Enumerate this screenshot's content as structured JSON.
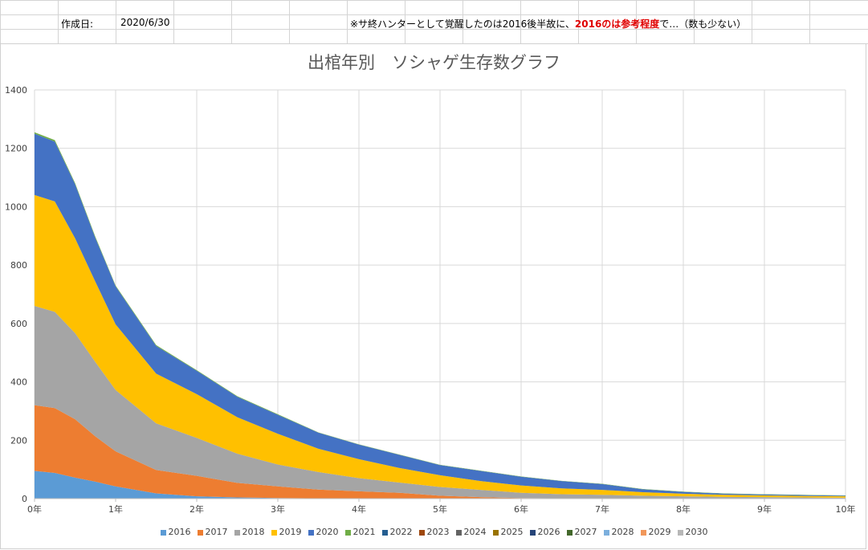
{
  "header": {
    "created_label": "作成日:",
    "created_date": "2020/6/30",
    "note_pre": "※サ終ハンターとして覚醒したのは2016後半故に、",
    "note_red": "2016のは参考程度",
    "note_post": "で…（数も少ない）"
  },
  "chart_data": {
    "type": "area",
    "stacked": true,
    "title": "出棺年別　ソシャゲ生存数グラフ",
    "xlabel": "",
    "ylabel": "",
    "x_ticks": [
      "0年",
      "1年",
      "2年",
      "3年",
      "4年",
      "5年",
      "6年",
      "7年",
      "8年",
      "9年",
      "10年"
    ],
    "x_range": [
      0,
      10
    ],
    "ylim": [
      0,
      1400
    ],
    "y_ticks": [
      0,
      200,
      400,
      600,
      800,
      1000,
      1200,
      1400
    ],
    "grid": true,
    "legend_position": "bottom",
    "x": [
      0,
      0.25,
      0.5,
      0.75,
      1,
      1.5,
      2,
      2.5,
      3,
      3.5,
      4,
      4.5,
      5,
      5.5,
      6,
      6.5,
      7,
      7.5,
      8,
      8.5,
      9,
      9.5,
      10
    ],
    "series": [
      {
        "name": "2016",
        "color": "#5b9bd5",
        "values": [
          95,
          88,
          72,
          58,
          42,
          18,
          8,
          4,
          2,
          1,
          0,
          0,
          0,
          0,
          0,
          0,
          0,
          0,
          0,
          0,
          0,
          0,
          0
        ]
      },
      {
        "name": "2017",
        "color": "#ed7d31",
        "values": [
          225,
          222,
          200,
          155,
          120,
          80,
          70,
          50,
          40,
          30,
          25,
          20,
          10,
          5,
          2,
          1,
          1,
          0,
          0,
          0,
          0,
          0,
          0
        ]
      },
      {
        "name": "2018",
        "color": "#a5a5a5",
        "values": [
          340,
          330,
          295,
          255,
          210,
          160,
          130,
          100,
          75,
          60,
          45,
          35,
          30,
          25,
          18,
          14,
          12,
          10,
          8,
          6,
          5,
          4,
          3
        ]
      },
      {
        "name": "2019",
        "color": "#ffc000",
        "values": [
          380,
          378,
          325,
          275,
          225,
          170,
          150,
          125,
          105,
          80,
          65,
          50,
          40,
          30,
          25,
          20,
          17,
          12,
          9,
          7,
          6,
          5,
          5
        ]
      },
      {
        "name": "2020",
        "color": "#4472c4",
        "values": [
          210,
          205,
          185,
          150,
          130,
          95,
          80,
          70,
          65,
          55,
          50,
          45,
          35,
          35,
          30,
          25,
          20,
          10,
          6,
          4,
          3,
          3,
          2
        ]
      },
      {
        "name": "2021",
        "color": "#70ad47",
        "values": [
          5,
          5,
          4,
          4,
          3,
          3,
          2,
          2,
          2,
          1,
          1,
          1,
          1,
          1,
          1,
          1,
          1,
          1,
          1,
          1,
          1,
          1,
          1
        ]
      },
      {
        "name": "2022",
        "color": "#255e91",
        "values": [
          0,
          0,
          0,
          0,
          0,
          0,
          0,
          0,
          0,
          0,
          0,
          0,
          0,
          0,
          0,
          0,
          0,
          0,
          0,
          0,
          0,
          0,
          0
        ]
      },
      {
        "name": "2023",
        "color": "#9e480e",
        "values": [
          0,
          0,
          0,
          0,
          0,
          0,
          0,
          0,
          0,
          0,
          0,
          0,
          0,
          0,
          0,
          0,
          0,
          0,
          0,
          0,
          0,
          0,
          0
        ]
      },
      {
        "name": "2024",
        "color": "#636363",
        "values": [
          0,
          0,
          0,
          0,
          0,
          0,
          0,
          0,
          0,
          0,
          0,
          0,
          0,
          0,
          0,
          0,
          0,
          0,
          0,
          0,
          0,
          0,
          0
        ]
      },
      {
        "name": "2025",
        "color": "#997300",
        "values": [
          0,
          0,
          0,
          0,
          0,
          0,
          0,
          0,
          0,
          0,
          0,
          0,
          0,
          0,
          0,
          0,
          0,
          0,
          0,
          0,
          0,
          0,
          0
        ]
      },
      {
        "name": "2026",
        "color": "#264478",
        "values": [
          0,
          0,
          0,
          0,
          0,
          0,
          0,
          0,
          0,
          0,
          0,
          0,
          0,
          0,
          0,
          0,
          0,
          0,
          0,
          0,
          0,
          0,
          0
        ]
      },
      {
        "name": "2027",
        "color": "#43682b",
        "values": [
          0,
          0,
          0,
          0,
          0,
          0,
          0,
          0,
          0,
          0,
          0,
          0,
          0,
          0,
          0,
          0,
          0,
          0,
          0,
          0,
          0,
          0,
          0
        ]
      },
      {
        "name": "2028",
        "color": "#7cafdd",
        "values": [
          0,
          0,
          0,
          0,
          0,
          0,
          0,
          0,
          0,
          0,
          0,
          0,
          0,
          0,
          0,
          0,
          0,
          0,
          0,
          0,
          0,
          0,
          0
        ]
      },
      {
        "name": "2029",
        "color": "#f1975a",
        "values": [
          0,
          0,
          0,
          0,
          0,
          0,
          0,
          0,
          0,
          0,
          0,
          0,
          0,
          0,
          0,
          0,
          0,
          0,
          0,
          0,
          0,
          0,
          0
        ]
      },
      {
        "name": "2030",
        "color": "#b7b7b7",
        "values": [
          0,
          0,
          0,
          0,
          0,
          0,
          0,
          0,
          0,
          0,
          0,
          0,
          0,
          0,
          0,
          0,
          0,
          0,
          0,
          0,
          0,
          0,
          0
        ]
      }
    ]
  }
}
